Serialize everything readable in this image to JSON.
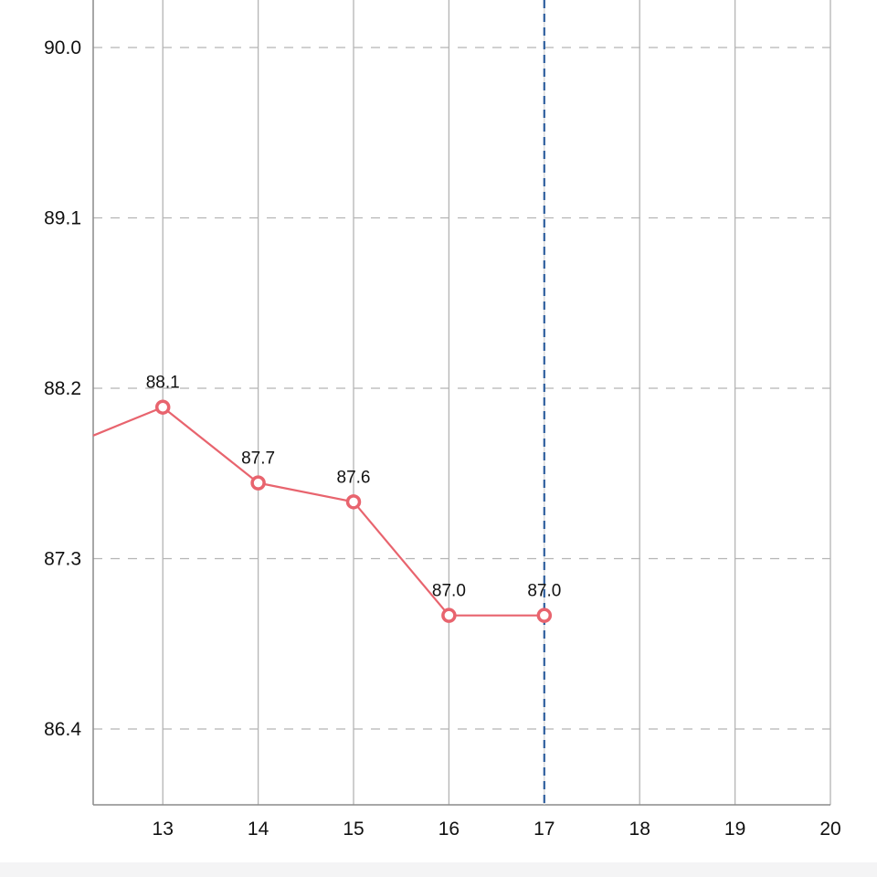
{
  "chart_data": {
    "type": "line",
    "title": "",
    "xlabel": "",
    "ylabel": "",
    "x_ticks": [
      "13",
      "14",
      "15",
      "16",
      "17",
      "18",
      "19",
      "20"
    ],
    "y_ticks": [
      "90.0",
      "89.1",
      "88.2",
      "87.3",
      "86.4"
    ],
    "xlim": [
      12.27,
      20
    ],
    "ylim": [
      86.0,
      90.2
    ],
    "grid": {
      "vertical": "solid",
      "horizontal": "dashed"
    },
    "series": [
      {
        "x": [
          12.27,
          13,
          14,
          15,
          16,
          17
        ],
        "values": [
          87.95,
          88.1,
          87.7,
          87.6,
          87.0,
          87.0
        ],
        "labels": [
          "",
          "88.1",
          "87.7",
          "87.6",
          "87.0",
          "87.0"
        ],
        "color": "#e8646e"
      }
    ],
    "current_marker": {
      "x": 17,
      "color": "#2f5f9e"
    }
  },
  "colors": {
    "grid": "#b4b4b4",
    "axis": "#8a8a8a",
    "footer": "#f4f4f5"
  }
}
